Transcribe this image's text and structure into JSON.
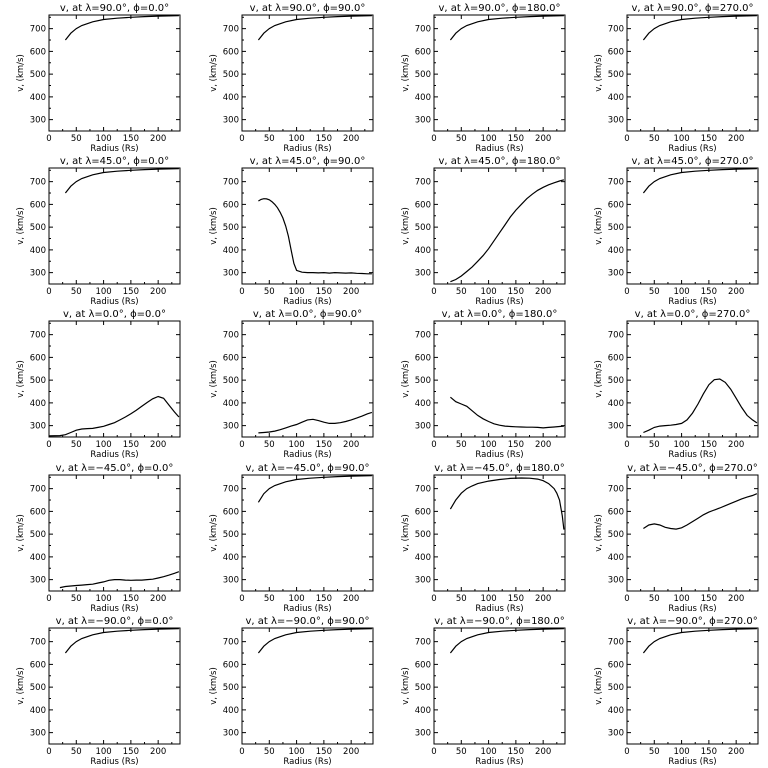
{
  "chart_data": [
    {
      "type": "line",
      "title": "v, at λ=90.0°, ϕ=0.0°",
      "xlabel": "Radius (Rs)",
      "ylabel": "v, (km/s)",
      "xlim": [
        0,
        240
      ],
      "ylim": [
        250,
        760
      ],
      "x": [
        30,
        40,
        50,
        60,
        80,
        100,
        125,
        150,
        175,
        200,
        238
      ],
      "y": [
        650,
        680,
        700,
        714,
        730,
        740,
        746,
        750,
        753,
        755,
        757
      ]
    },
    {
      "type": "line",
      "title": "v, at λ=90.0°, ϕ=90.0°",
      "xlabel": "Radius (Rs)",
      "ylabel": "v, (km/s)",
      "xlim": [
        0,
        240
      ],
      "ylim": [
        250,
        760
      ],
      "x": [
        30,
        40,
        50,
        60,
        80,
        100,
        125,
        150,
        175,
        200,
        238
      ],
      "y": [
        650,
        680,
        700,
        714,
        730,
        740,
        746,
        750,
        753,
        755,
        757
      ]
    },
    {
      "type": "line",
      "title": "v, at λ=90.0°, ϕ=180.0°",
      "xlabel": "Radius (Rs)",
      "ylabel": "v, (km/s)",
      "xlim": [
        0,
        240
      ],
      "ylim": [
        250,
        760
      ],
      "x": [
        30,
        40,
        50,
        60,
        80,
        100,
        125,
        150,
        175,
        200,
        238
      ],
      "y": [
        650,
        680,
        700,
        714,
        730,
        740,
        746,
        750,
        753,
        755,
        757
      ]
    },
    {
      "type": "line",
      "title": "v, at λ=90.0°, ϕ=270.0°",
      "xlabel": "Radius (Rs)",
      "ylabel": "v, (km/s)",
      "xlim": [
        0,
        240
      ],
      "ylim": [
        250,
        760
      ],
      "x": [
        30,
        40,
        50,
        60,
        80,
        100,
        125,
        150,
        175,
        200,
        238
      ],
      "y": [
        650,
        680,
        700,
        714,
        730,
        740,
        746,
        750,
        753,
        755,
        757
      ]
    },
    {
      "type": "line",
      "title": "v, at λ=45.0°, ϕ=0.0°",
      "xlabel": "Radius (Rs)",
      "ylabel": "v, (km/s)",
      "xlim": [
        0,
        240
      ],
      "ylim": [
        250,
        760
      ],
      "x": [
        30,
        40,
        50,
        60,
        80,
        100,
        125,
        150,
        175,
        200,
        238
      ],
      "y": [
        650,
        680,
        700,
        714,
        730,
        740,
        746,
        750,
        753,
        755,
        757
      ]
    },
    {
      "type": "line",
      "title": "v, at λ=45.0°, ϕ=90.0°",
      "xlabel": "Radius (Rs)",
      "ylabel": "v, (km/s)",
      "xlim": [
        0,
        240
      ],
      "ylim": [
        250,
        760
      ],
      "x": [
        30,
        35,
        40,
        45,
        50,
        55,
        60,
        65,
        70,
        75,
        80,
        85,
        90,
        95,
        100,
        110,
        120,
        130,
        140,
        150,
        160,
        170,
        180,
        190,
        200,
        210,
        220,
        230,
        238
      ],
      "y": [
        615,
        622,
        625,
        624,
        620,
        612,
        600,
        585,
        565,
        540,
        505,
        460,
        400,
        340,
        310,
        302,
        300,
        300,
        299,
        300,
        298,
        300,
        299,
        298,
        299,
        297,
        296,
        295,
        295
      ]
    },
    {
      "type": "line",
      "title": "v, at λ=45.0°, ϕ=180.0°",
      "xlabel": "Radius (Rs)",
      "ylabel": "v, (km/s)",
      "xlim": [
        0,
        240
      ],
      "ylim": [
        250,
        760
      ],
      "x": [
        30,
        40,
        50,
        60,
        70,
        80,
        90,
        100,
        110,
        120,
        130,
        140,
        150,
        160,
        170,
        180,
        190,
        200,
        210,
        220,
        230,
        238
      ],
      "y": [
        260,
        270,
        285,
        305,
        325,
        350,
        375,
        405,
        440,
        475,
        510,
        545,
        575,
        600,
        625,
        645,
        662,
        675,
        686,
        695,
        703,
        708
      ]
    },
    {
      "type": "line",
      "title": "v, at λ=45.0°, ϕ=270.0°",
      "xlabel": "Radius (Rs)",
      "ylabel": "v, (km/s)",
      "xlim": [
        0,
        240
      ],
      "ylim": [
        250,
        760
      ],
      "x": [
        30,
        40,
        50,
        60,
        80,
        100,
        125,
        150,
        175,
        200,
        238
      ],
      "y": [
        650,
        680,
        700,
        714,
        730,
        740,
        746,
        750,
        753,
        755,
        757
      ]
    },
    {
      "type": "line",
      "title": "v, at λ=0.0°, ϕ=0.0°",
      "xlabel": "Radius (Rs)",
      "ylabel": "v, (km/s)",
      "xlim": [
        0,
        240
      ],
      "ylim": [
        250,
        760
      ],
      "x": [
        0,
        20,
        30,
        40,
        50,
        60,
        70,
        80,
        90,
        100,
        110,
        120,
        130,
        140,
        150,
        160,
        170,
        180,
        190,
        200,
        210,
        220,
        230,
        238
      ],
      "y": [
        255,
        256,
        260,
        270,
        280,
        285,
        287,
        288,
        292,
        297,
        305,
        313,
        325,
        338,
        352,
        368,
        385,
        402,
        418,
        428,
        420,
        390,
        360,
        338
      ]
    },
    {
      "type": "line",
      "title": "v, at λ=0.0°, ϕ=90.0°",
      "xlabel": "Radius (Rs)",
      "ylabel": "v, (km/s)",
      "xlim": [
        0,
        240
      ],
      "ylim": [
        250,
        760
      ],
      "x": [
        30,
        40,
        50,
        60,
        70,
        80,
        90,
        100,
        110,
        120,
        130,
        140,
        150,
        160,
        170,
        180,
        190,
        200,
        210,
        220,
        230,
        238
      ],
      "y": [
        268,
        270,
        272,
        276,
        282,
        290,
        298,
        305,
        315,
        325,
        328,
        322,
        315,
        310,
        310,
        313,
        318,
        325,
        333,
        342,
        352,
        358
      ]
    },
    {
      "type": "line",
      "title": "v, at λ=0.0°, ϕ=180.0°",
      "xlabel": "Radius (Rs)",
      "ylabel": "v, (km/s)",
      "xlim": [
        0,
        240
      ],
      "ylim": [
        250,
        760
      ],
      "x": [
        30,
        40,
        50,
        60,
        70,
        80,
        90,
        100,
        110,
        120,
        130,
        140,
        150,
        160,
        170,
        180,
        190,
        200,
        210,
        220,
        230,
        238
      ],
      "y": [
        425,
        405,
        395,
        385,
        365,
        345,
        330,
        318,
        308,
        302,
        298,
        296,
        295,
        294,
        293,
        293,
        292,
        290,
        292,
        294,
        296,
        298
      ]
    },
    {
      "type": "line",
      "title": "v, at λ=0.0°, ϕ=270.0°",
      "xlabel": "Radius (Rs)",
      "ylabel": "v, (km/s)",
      "xlim": [
        0,
        240
      ],
      "ylim": [
        250,
        760
      ],
      "x": [
        30,
        40,
        50,
        60,
        70,
        80,
        90,
        100,
        110,
        120,
        130,
        140,
        150,
        160,
        170,
        180,
        190,
        200,
        210,
        220,
        230,
        238
      ],
      "y": [
        270,
        280,
        292,
        298,
        300,
        302,
        305,
        310,
        325,
        355,
        395,
        440,
        480,
        502,
        505,
        490,
        460,
        420,
        380,
        345,
        325,
        312
      ]
    },
    {
      "type": "line",
      "title": "v, at λ=−45.0°, ϕ=0.0°",
      "xlabel": "Radius (Rs)",
      "ylabel": "v, (km/s)",
      "xlim": [
        0,
        240
      ],
      "ylim": [
        250,
        760
      ],
      "x": [
        20,
        30,
        40,
        50,
        60,
        70,
        80,
        90,
        100,
        110,
        120,
        130,
        140,
        150,
        160,
        170,
        180,
        190,
        200,
        210,
        220,
        230,
        238
      ],
      "y": [
        265,
        270,
        272,
        274,
        276,
        278,
        280,
        285,
        290,
        297,
        300,
        300,
        298,
        297,
        298,
        298,
        300,
        302,
        307,
        313,
        320,
        328,
        335
      ]
    },
    {
      "type": "line",
      "title": "v, at λ=−45.0°, ϕ=90.0°",
      "xlabel": "Radius (Rs)",
      "ylabel": "v, (km/s)",
      "xlim": [
        0,
        240
      ],
      "ylim": [
        250,
        760
      ],
      "x": [
        30,
        40,
        50,
        60,
        80,
        100,
        125,
        150,
        175,
        200,
        238
      ],
      "y": [
        640,
        678,
        700,
        714,
        730,
        740,
        746,
        750,
        753,
        755,
        757
      ]
    },
    {
      "type": "line",
      "title": "v, at λ=−45.0°, ϕ=180.0°",
      "xlabel": "Radius (Rs)",
      "ylabel": "v, (km/s)",
      "xlim": [
        0,
        240
      ],
      "ylim": [
        250,
        760
      ],
      "x": [
        30,
        40,
        50,
        60,
        70,
        80,
        100,
        120,
        140,
        160,
        175,
        190,
        200,
        210,
        220,
        225,
        230,
        235,
        238
      ],
      "y": [
        610,
        650,
        680,
        700,
        712,
        722,
        733,
        740,
        745,
        747,
        746,
        742,
        735,
        722,
        700,
        680,
        650,
        580,
        520
      ]
    },
    {
      "type": "line",
      "title": "v, at λ=−45.0°, ϕ=270.0°",
      "xlabel": "Radius (Rs)",
      "ylabel": "v, (km/s)",
      "xlim": [
        0,
        240
      ],
      "ylim": [
        250,
        760
      ],
      "x": [
        30,
        40,
        50,
        60,
        70,
        80,
        90,
        100,
        110,
        120,
        130,
        140,
        150,
        160,
        170,
        180,
        190,
        200,
        210,
        220,
        230,
        238
      ],
      "y": [
        525,
        540,
        545,
        540,
        530,
        525,
        522,
        528,
        540,
        555,
        570,
        585,
        597,
        606,
        615,
        625,
        635,
        645,
        655,
        663,
        670,
        678
      ]
    },
    {
      "type": "line",
      "title": "v, at λ=−90.0°, ϕ=0.0°",
      "xlabel": "Radius (Rs)",
      "ylabel": "v, (km/s)",
      "xlim": [
        0,
        240
      ],
      "ylim": [
        250,
        760
      ],
      "x": [
        30,
        40,
        50,
        60,
        80,
        100,
        125,
        150,
        175,
        200,
        238
      ],
      "y": [
        650,
        680,
        700,
        714,
        730,
        740,
        746,
        750,
        753,
        755,
        757
      ]
    },
    {
      "type": "line",
      "title": "v, at λ=−90.0°, ϕ=90.0°",
      "xlabel": "Radius (Rs)",
      "ylabel": "v, (km/s)",
      "xlim": [
        0,
        240
      ],
      "ylim": [
        250,
        760
      ],
      "x": [
        30,
        40,
        50,
        60,
        80,
        100,
        125,
        150,
        175,
        200,
        238
      ],
      "y": [
        650,
        680,
        700,
        714,
        730,
        740,
        746,
        750,
        753,
        755,
        757
      ]
    },
    {
      "type": "line",
      "title": "v, at λ=−90.0°, ϕ=180.0°",
      "xlabel": "Radius (Rs)",
      "ylabel": "v, (km/s)",
      "xlim": [
        0,
        240
      ],
      "ylim": [
        250,
        760
      ],
      "x": [
        30,
        40,
        50,
        60,
        80,
        100,
        125,
        150,
        175,
        200,
        238
      ],
      "y": [
        650,
        680,
        700,
        714,
        730,
        740,
        746,
        750,
        753,
        755,
        757
      ]
    },
    {
      "type": "line",
      "title": "v, at λ=−90.0°, ϕ=270.0°",
      "xlabel": "Radius (Rs)",
      "ylabel": "v, (km/s)",
      "xlim": [
        0,
        240
      ],
      "ylim": [
        250,
        760
      ],
      "x": [
        30,
        40,
        50,
        60,
        80,
        100,
        125,
        150,
        175,
        200,
        238
      ],
      "y": [
        650,
        680,
        700,
        714,
        730,
        740,
        746,
        750,
        753,
        755,
        757
      ]
    }
  ],
  "axes": {
    "x_ticks": [
      0,
      50,
      100,
      150,
      200
    ],
    "y_ticks": [
      300,
      400,
      500,
      600,
      700
    ]
  }
}
